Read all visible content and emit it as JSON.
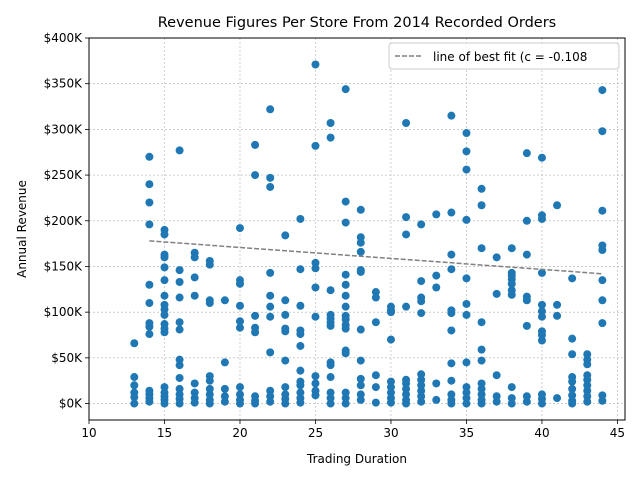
{
  "chart_data": {
    "type": "scatter",
    "title": "Revenue Figures Per Store From 2014 Recorded Orders",
    "xlabel": "Trading Duration",
    "ylabel": "Annual Revenue",
    "xlim": [
      10,
      45.5
    ],
    "ylim": [
      -18000,
      400000
    ],
    "xticks": [
      10,
      15,
      20,
      25,
      30,
      35,
      40,
      45
    ],
    "yticks": [
      0,
      50000,
      100000,
      150000,
      200000,
      250000,
      300000,
      350000,
      400000
    ],
    "ytick_labels": [
      "$0K",
      "$50K",
      "$100K",
      "$150K",
      "$200K",
      "$250K",
      "$300K",
      "$350K",
      "$400K"
    ],
    "grid": true,
    "legend": {
      "placement": "top-right",
      "entries": [
        "line of best fit (c = -0.108"
      ]
    },
    "colors": {
      "points": "#1f77b4",
      "fit_line": "#808080",
      "grid": "#b0b0b0"
    },
    "fit_line": {
      "x": [
        14,
        44
      ],
      "y": [
        178000,
        142000
      ]
    },
    "series": [
      {
        "points": [
          [
            13,
            66000
          ],
          [
            13,
            29000
          ],
          [
            13,
            20000
          ],
          [
            13,
            12000
          ],
          [
            13,
            7000
          ],
          [
            13,
            0
          ],
          [
            14,
            270000
          ],
          [
            14,
            240000
          ],
          [
            14,
            220000
          ],
          [
            14,
            196000
          ],
          [
            14,
            130000
          ],
          [
            14,
            110000
          ],
          [
            14,
            88000
          ],
          [
            14,
            84000
          ],
          [
            14,
            76000
          ],
          [
            14,
            14000
          ],
          [
            14,
            10000
          ],
          [
            14,
            6000
          ],
          [
            14,
            2000
          ],
          [
            15,
            190000
          ],
          [
            15,
            185000
          ],
          [
            15,
            163000
          ],
          [
            15,
            160000
          ],
          [
            15,
            149000
          ],
          [
            15,
            135000
          ],
          [
            15,
            118000
          ],
          [
            15,
            108000
          ],
          [
            15,
            103000
          ],
          [
            15,
            97000
          ],
          [
            15,
            87000
          ],
          [
            15,
            82000
          ],
          [
            15,
            78000
          ],
          [
            15,
            18000
          ],
          [
            15,
            12000
          ],
          [
            15,
            8000
          ],
          [
            15,
            4000
          ],
          [
            15,
            0
          ],
          [
            16,
            277000
          ],
          [
            16,
            146000
          ],
          [
            16,
            133000
          ],
          [
            16,
            116000
          ],
          [
            16,
            89000
          ],
          [
            16,
            81000
          ],
          [
            16,
            48000
          ],
          [
            16,
            42000
          ],
          [
            16,
            28000
          ],
          [
            16,
            16000
          ],
          [
            16,
            10000
          ],
          [
            16,
            5000
          ],
          [
            16,
            0
          ],
          [
            17,
            165000
          ],
          [
            17,
            160000
          ],
          [
            17,
            138000
          ],
          [
            17,
            118000
          ],
          [
            17,
            22000
          ],
          [
            17,
            12000
          ],
          [
            17,
            6000
          ],
          [
            17,
            1000
          ],
          [
            18,
            156000
          ],
          [
            18,
            152000
          ],
          [
            18,
            113000
          ],
          [
            18,
            110000
          ],
          [
            18,
            30000
          ],
          [
            18,
            25000
          ],
          [
            18,
            16000
          ],
          [
            18,
            10000
          ],
          [
            18,
            4000
          ],
          [
            18,
            0
          ],
          [
            19,
            113000
          ],
          [
            19,
            45000
          ],
          [
            19,
            16000
          ],
          [
            19,
            8000
          ],
          [
            19,
            2000
          ],
          [
            20,
            192000
          ],
          [
            20,
            135000
          ],
          [
            20,
            131000
          ],
          [
            20,
            107000
          ],
          [
            20,
            90000
          ],
          [
            20,
            83000
          ],
          [
            20,
            18000
          ],
          [
            20,
            10000
          ],
          [
            20,
            4000
          ],
          [
            20,
            0
          ],
          [
            21,
            283000
          ],
          [
            21,
            250000
          ],
          [
            21,
            96000
          ],
          [
            21,
            83000
          ],
          [
            21,
            78000
          ],
          [
            21,
            8000
          ],
          [
            21,
            3000
          ],
          [
            21,
            0
          ],
          [
            22,
            322000
          ],
          [
            22,
            247000
          ],
          [
            22,
            237000
          ],
          [
            22,
            143000
          ],
          [
            22,
            118000
          ],
          [
            22,
            106000
          ],
          [
            22,
            95000
          ],
          [
            22,
            56000
          ],
          [
            22,
            14000
          ],
          [
            22,
            8000
          ],
          [
            22,
            2000
          ],
          [
            23,
            184000
          ],
          [
            23,
            113000
          ],
          [
            23,
            97000
          ],
          [
            23,
            82000
          ],
          [
            23,
            79000
          ],
          [
            23,
            47000
          ],
          [
            23,
            18000
          ],
          [
            23,
            10000
          ],
          [
            23,
            5000
          ],
          [
            23,
            0
          ],
          [
            24,
            202000
          ],
          [
            24,
            147000
          ],
          [
            24,
            107000
          ],
          [
            24,
            80000
          ],
          [
            24,
            76000
          ],
          [
            24,
            63000
          ],
          [
            24,
            36000
          ],
          [
            24,
            24000
          ],
          [
            24,
            20000
          ],
          [
            24,
            12000
          ],
          [
            24,
            6000
          ],
          [
            24,
            1000
          ],
          [
            25,
            371000
          ],
          [
            25,
            282000
          ],
          [
            25,
            154000
          ],
          [
            25,
            148000
          ],
          [
            25,
            127000
          ],
          [
            25,
            95000
          ],
          [
            25,
            30000
          ],
          [
            25,
            22000
          ],
          [
            25,
            14000
          ],
          [
            25,
            9000
          ],
          [
            26,
            307000
          ],
          [
            26,
            291000
          ],
          [
            26,
            124000
          ],
          [
            26,
            97000
          ],
          [
            26,
            93000
          ],
          [
            26,
            89000
          ],
          [
            26,
            85000
          ],
          [
            26,
            45000
          ],
          [
            26,
            42000
          ],
          [
            26,
            29000
          ],
          [
            26,
            12000
          ],
          [
            26,
            6000
          ],
          [
            26,
            0
          ],
          [
            27,
            344000
          ],
          [
            27,
            221000
          ],
          [
            27,
            198000
          ],
          [
            27,
            141000
          ],
          [
            27,
            130000
          ],
          [
            27,
            118000
          ],
          [
            27,
            106000
          ],
          [
            27,
            96000
          ],
          [
            27,
            92000
          ],
          [
            27,
            86000
          ],
          [
            27,
            82000
          ],
          [
            27,
            58000
          ],
          [
            27,
            55000
          ],
          [
            27,
            12000
          ],
          [
            27,
            6000
          ],
          [
            27,
            0
          ],
          [
            28,
            212000
          ],
          [
            28,
            182000
          ],
          [
            28,
            176000
          ],
          [
            28,
            166000
          ],
          [
            28,
            146000
          ],
          [
            28,
            144000
          ],
          [
            28,
            81000
          ],
          [
            28,
            47000
          ],
          [
            28,
            27000
          ],
          [
            28,
            20000
          ],
          [
            28,
            10000
          ],
          [
            28,
            4000
          ],
          [
            29,
            122000
          ],
          [
            29,
            116000
          ],
          [
            29,
            89000
          ],
          [
            29,
            31000
          ],
          [
            29,
            18000
          ],
          [
            29,
            1000
          ],
          [
            30,
            106000
          ],
          [
            30,
            102000
          ],
          [
            30,
            100000
          ],
          [
            30,
            70000
          ],
          [
            30,
            24000
          ],
          [
            30,
            18000
          ],
          [
            30,
            12000
          ],
          [
            30,
            6000
          ],
          [
            30,
            1000
          ],
          [
            31,
            307000
          ],
          [
            31,
            204000
          ],
          [
            31,
            185000
          ],
          [
            31,
            106000
          ],
          [
            31,
            26000
          ],
          [
            31,
            22000
          ],
          [
            31,
            16000
          ],
          [
            31,
            10000
          ],
          [
            31,
            4000
          ],
          [
            31,
            0
          ],
          [
            32,
            196000
          ],
          [
            32,
            134000
          ],
          [
            32,
            116000
          ],
          [
            32,
            112000
          ],
          [
            32,
            99000
          ],
          [
            32,
            32000
          ],
          [
            32,
            26000
          ],
          [
            32,
            20000
          ],
          [
            32,
            14000
          ],
          [
            32,
            8000
          ],
          [
            32,
            2000
          ],
          [
            33,
            207000
          ],
          [
            33,
            140000
          ],
          [
            33,
            127000
          ],
          [
            33,
            22000
          ],
          [
            33,
            4000
          ],
          [
            34,
            315000
          ],
          [
            34,
            209000
          ],
          [
            34,
            163000
          ],
          [
            34,
            147000
          ],
          [
            34,
            102000
          ],
          [
            34,
            99000
          ],
          [
            34,
            80000
          ],
          [
            34,
            44000
          ],
          [
            34,
            25000
          ],
          [
            34,
            10000
          ],
          [
            34,
            4000
          ],
          [
            34,
            0
          ],
          [
            35,
            296000
          ],
          [
            35,
            276000
          ],
          [
            35,
            256000
          ],
          [
            35,
            201000
          ],
          [
            35,
            137000
          ],
          [
            35,
            109000
          ],
          [
            35,
            97000
          ],
          [
            35,
            45000
          ],
          [
            35,
            18000
          ],
          [
            35,
            12000
          ],
          [
            35,
            6000
          ],
          [
            35,
            0
          ],
          [
            36,
            235000
          ],
          [
            36,
            217000
          ],
          [
            36,
            170000
          ],
          [
            36,
            89000
          ],
          [
            36,
            59000
          ],
          [
            36,
            47000
          ],
          [
            36,
            22000
          ],
          [
            36,
            16000
          ],
          [
            36,
            10000
          ],
          [
            36,
            4000
          ],
          [
            36,
            0
          ],
          [
            37,
            160000
          ],
          [
            37,
            120000
          ],
          [
            37,
            31000
          ],
          [
            37,
            8000
          ],
          [
            37,
            2000
          ],
          [
            38,
            170000
          ],
          [
            38,
            143000
          ],
          [
            38,
            140000
          ],
          [
            38,
            136000
          ],
          [
            38,
            131000
          ],
          [
            38,
            124000
          ],
          [
            38,
            119000
          ],
          [
            38,
            18000
          ],
          [
            38,
            6000
          ],
          [
            38,
            0
          ],
          [
            39,
            274000
          ],
          [
            39,
            200000
          ],
          [
            39,
            163000
          ],
          [
            39,
            117000
          ],
          [
            39,
            113000
          ],
          [
            39,
            85000
          ],
          [
            39,
            8000
          ],
          [
            39,
            2000
          ],
          [
            40,
            269000
          ],
          [
            40,
            206000
          ],
          [
            40,
            202000
          ],
          [
            40,
            143000
          ],
          [
            40,
            108000
          ],
          [
            40,
            101000
          ],
          [
            40,
            95000
          ],
          [
            40,
            79000
          ],
          [
            40,
            75000
          ],
          [
            40,
            69000
          ],
          [
            40,
            10000
          ],
          [
            40,
            5000
          ],
          [
            40,
            0
          ],
          [
            41,
            217000
          ],
          [
            41,
            108000
          ],
          [
            41,
            96000
          ],
          [
            41,
            6000
          ],
          [
            42,
            137000
          ],
          [
            42,
            71000
          ],
          [
            42,
            54000
          ],
          [
            42,
            29000
          ],
          [
            42,
            24000
          ],
          [
            42,
            16000
          ],
          [
            42,
            9000
          ],
          [
            42,
            3000
          ],
          [
            42,
            0
          ],
          [
            43,
            54000
          ],
          [
            43,
            48000
          ],
          [
            43,
            43000
          ],
          [
            43,
            31000
          ],
          [
            43,
            26000
          ],
          [
            43,
            20000
          ],
          [
            43,
            14000
          ],
          [
            43,
            8000
          ],
          [
            43,
            2000
          ],
          [
            44,
            343000
          ],
          [
            44,
            298000
          ],
          [
            44,
            211000
          ],
          [
            44,
            173000
          ],
          [
            44,
            168000
          ],
          [
            44,
            135000
          ],
          [
            44,
            113000
          ],
          [
            44,
            88000
          ],
          [
            44,
            9000
          ],
          [
            44,
            3000
          ]
        ]
      }
    ]
  }
}
